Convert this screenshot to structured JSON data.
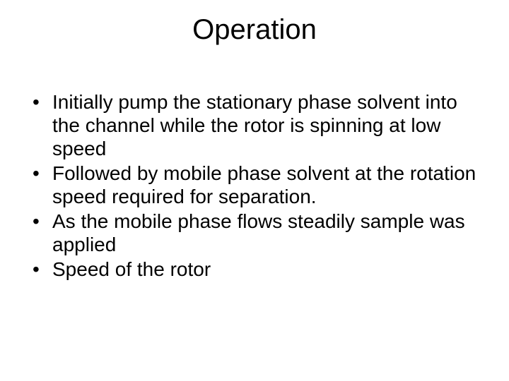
{
  "slide": {
    "title": "Operation",
    "title_fontsize": 40,
    "title_color": "#000000",
    "background_color": "#ffffff",
    "body_fontsize": 28,
    "body_color": "#000000",
    "bullets": [
      "Initially pump the stationary phase solvent into the channel while the rotor is spinning at low speed",
      "Followed by mobile phase solvent at the rotation speed required for separation.",
      "As the mobile phase flows steadily sample was applied",
      "Speed of the rotor"
    ]
  }
}
